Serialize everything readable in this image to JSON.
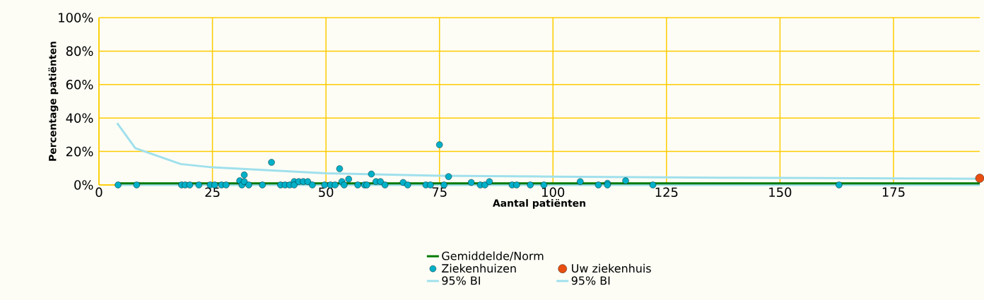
{
  "chart_data": {
    "type": "scatter",
    "xlabel": "Aantal patiënten",
    "ylabel": "Percentage patiënten",
    "xlim": [
      0,
      194
    ],
    "ylim": [
      0,
      100
    ],
    "xticks": [
      0,
      25,
      50,
      75,
      100,
      125,
      150,
      175
    ],
    "yticks": [
      {
        "value": 0,
        "label": "0%"
      },
      {
        "value": 20,
        "label": "20%"
      },
      {
        "value": 40,
        "label": "40%"
      },
      {
        "value": 60,
        "label": "60%"
      },
      {
        "value": 80,
        "label": "80%"
      },
      {
        "value": 100,
        "label": "100%"
      }
    ],
    "grid": true,
    "legend": "bottom",
    "series": [
      {
        "name": "Gemiddelde/Norm",
        "type": "line",
        "color": "#007a00",
        "x": [
          4,
          194
        ],
        "values": [
          1,
          1
        ]
      },
      {
        "name": "Ziekenhuizen",
        "color": "#00b0c8",
        "x": [
          4.2,
          8.3,
          18.2,
          19,
          20,
          22,
          24.5,
          25.5,
          27,
          28,
          31,
          31.5,
          32,
          32,
          33,
          36,
          38,
          40,
          41,
          42,
          43,
          43,
          44,
          45,
          46,
          47,
          49.7,
          51,
          52,
          53,
          53.5,
          54,
          55,
          57,
          58.5,
          59,
          60,
          61,
          62,
          63,
          67,
          68,
          72,
          73,
          75,
          76,
          77,
          82,
          84,
          85,
          86,
          91,
          92,
          95,
          98,
          106,
          110,
          112,
          112,
          116,
          122,
          163
        ],
        "values": [
          0,
          0,
          0,
          0,
          0,
          0,
          0,
          0,
          0,
          0,
          2.5,
          0,
          6,
          2,
          0,
          0,
          13.5,
          0,
          0,
          0,
          2,
          0,
          2,
          2,
          2,
          0,
          0,
          0,
          0,
          9.7,
          2,
          0,
          3.5,
          0,
          0,
          0,
          6.5,
          2,
          2,
          0,
          1.5,
          0,
          0,
          0,
          24,
          0,
          5,
          1.5,
          0,
          0,
          2,
          0,
          0,
          0,
          0,
          2,
          0,
          1,
          0,
          2.5,
          0,
          0
        ]
      },
      {
        "name": "Uw ziekenhuis",
        "color": "#e84e0f",
        "x": [
          194
        ],
        "values": [
          4
        ]
      },
      {
        "name": "95% BI",
        "type": "line",
        "color": "#a0e0ec",
        "x": [
          4,
          8,
          18,
          25,
          50,
          75,
          100,
          125,
          150,
          194
        ],
        "values": [
          37,
          22,
          12.5,
          10.5,
          7,
          5.5,
          5,
          4.5,
          4.2,
          3.7
        ]
      },
      {
        "name": "95% BI",
        "type": "line",
        "color": "#a0e0ec",
        "x": [
          4,
          194
        ],
        "values": [
          0,
          0
        ]
      }
    ]
  }
}
